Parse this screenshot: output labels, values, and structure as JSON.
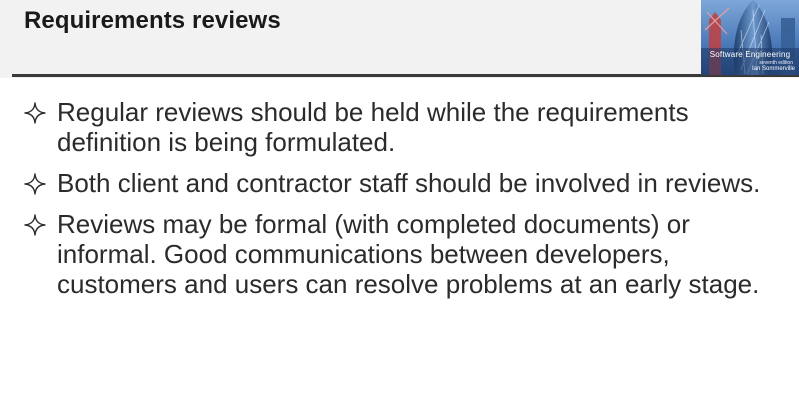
{
  "slide": {
    "title": "Requirements reviews",
    "book_cover": {
      "caption": "Software Engineering",
      "edition": "seventh edition",
      "author": "Ian Sommerville"
    },
    "bullets": [
      {
        "icon": "four-point-star-icon",
        "text": "Regular reviews should be held while the requirements definition is being formulated."
      },
      {
        "icon": "four-point-star-icon",
        "text": "Both client and contractor staff should be involved in reviews."
      },
      {
        "icon": "four-point-star-icon",
        "text": "Reviews may be formal (with completed documents) or informal. Good communications between developers, customers and users can resolve problems at an early stage."
      }
    ]
  },
  "colors": {
    "title_band": "#f2f2f2",
    "title_rule": "#3a3a3a",
    "text": "#2b2b2b",
    "cover_sky": "#4a78b8"
  }
}
